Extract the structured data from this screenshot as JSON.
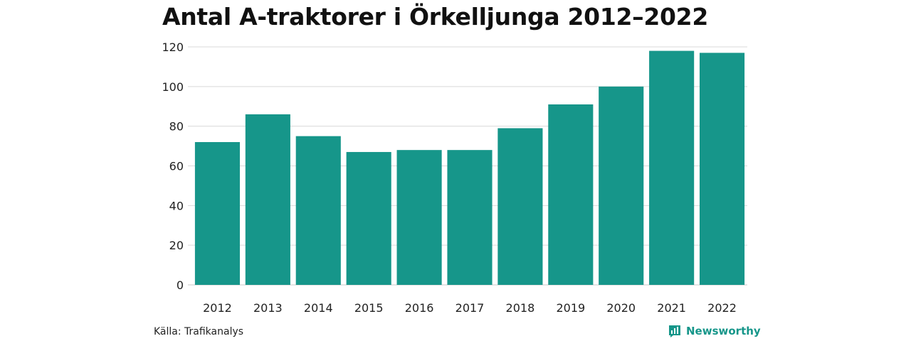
{
  "chart_data": {
    "type": "bar",
    "title": "Antal A-traktorer i Örkelljunga 2012–2022",
    "xlabel": "",
    "ylabel": "",
    "categories": [
      "2012",
      "2013",
      "2014",
      "2015",
      "2016",
      "2017",
      "2018",
      "2019",
      "2020",
      "2021",
      "2022"
    ],
    "values": [
      72,
      86,
      75,
      67,
      68,
      68,
      79,
      91,
      100,
      118,
      117
    ],
    "ylim": [
      0,
      120
    ],
    "yticks": [
      0,
      20,
      40,
      60,
      80,
      100,
      120
    ],
    "grid": true,
    "bar_color": "#16968a"
  },
  "footer": {
    "source": "Källa: Trafikanalys",
    "brand": "Newsworthy",
    "brand_icon": "newsworthy-logo-icon",
    "brand_color": "#16968a"
  }
}
